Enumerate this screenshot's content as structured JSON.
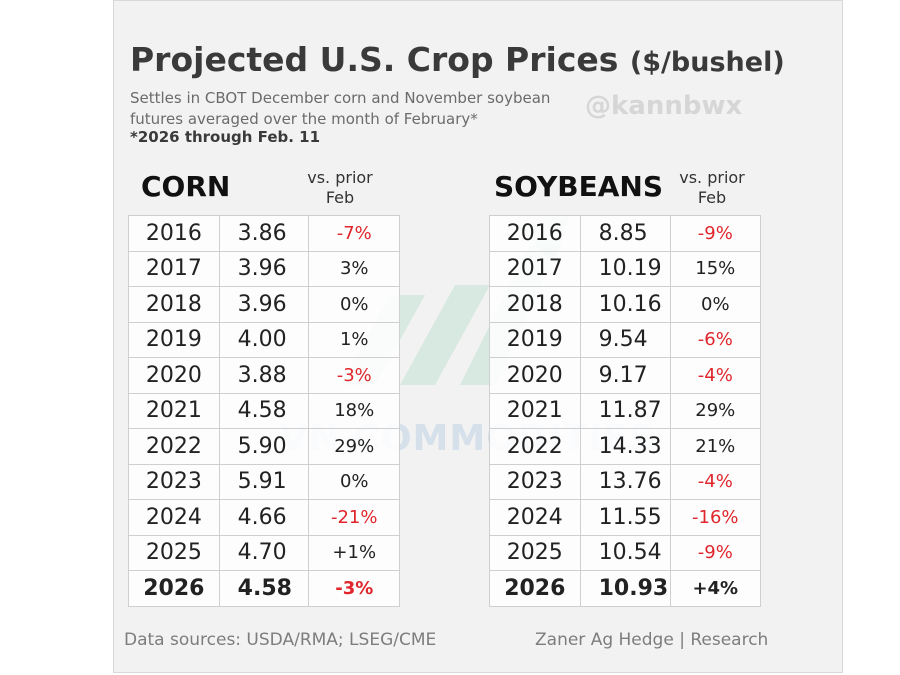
{
  "title": "Projected U.S. Crop Prices",
  "title_unit": "($/bushel)",
  "subtitle": "Settles in CBOT December corn and November soybean futures averaged over the month of February*",
  "note": "*2026 through Feb. 11",
  "handle": "@kannbwx",
  "watermark": "VN COMMODITIES",
  "vs_header": "vs. prior Feb",
  "colors": {
    "negative": "#e0262c",
    "text": "#222222",
    "background": "#f2f2f2"
  },
  "corn": {
    "heading": "CORN",
    "rows": [
      {
        "year": "2016",
        "price": "3.86",
        "change": "-7%",
        "neg": true
      },
      {
        "year": "2017",
        "price": "3.96",
        "change": "3%",
        "neg": false
      },
      {
        "year": "2018",
        "price": "3.96",
        "change": "0%",
        "neg": false
      },
      {
        "year": "2019",
        "price": "4.00",
        "change": "1%",
        "neg": false
      },
      {
        "year": "2020",
        "price": "3.88",
        "change": "-3%",
        "neg": true
      },
      {
        "year": "2021",
        "price": "4.58",
        "change": "18%",
        "neg": false
      },
      {
        "year": "2022",
        "price": "5.90",
        "change": "29%",
        "neg": false
      },
      {
        "year": "2023",
        "price": "5.91",
        "change": "0%",
        "neg": false
      },
      {
        "year": "2024",
        "price": "4.66",
        "change": "-21%",
        "neg": true
      },
      {
        "year": "2025",
        "price": "4.70",
        "change": "+1%",
        "neg": false
      },
      {
        "year": "2026",
        "price": "4.58",
        "change": "-3%",
        "neg": true,
        "bold": true
      }
    ]
  },
  "soybeans": {
    "heading": "SOYBEANS",
    "rows": [
      {
        "year": "2016",
        "price": "8.85",
        "change": "-9%",
        "neg": true
      },
      {
        "year": "2017",
        "price": "10.19",
        "change": "15%",
        "neg": false
      },
      {
        "year": "2018",
        "price": "10.16",
        "change": "0%",
        "neg": false
      },
      {
        "year": "2019",
        "price": "9.54",
        "change": "-6%",
        "neg": true
      },
      {
        "year": "2020",
        "price": "9.17",
        "change": "-4%",
        "neg": true
      },
      {
        "year": "2021",
        "price": "11.87",
        "change": "29%",
        "neg": false
      },
      {
        "year": "2022",
        "price": "14.33",
        "change": "21%",
        "neg": false
      },
      {
        "year": "2023",
        "price": "13.76",
        "change": "-4%",
        "neg": true
      },
      {
        "year": "2024",
        "price": "11.55",
        "change": "-16%",
        "neg": true
      },
      {
        "year": "2025",
        "price": "10.54",
        "change": "-9%",
        "neg": true
      },
      {
        "year": "2026",
        "price": "10.93",
        "change": "+4%",
        "neg": false,
        "bold": true
      }
    ]
  },
  "footer": {
    "sources": "Data sources: USDA/RMA; LSEG/CME",
    "credit": "Zaner Ag Hedge | Research"
  }
}
